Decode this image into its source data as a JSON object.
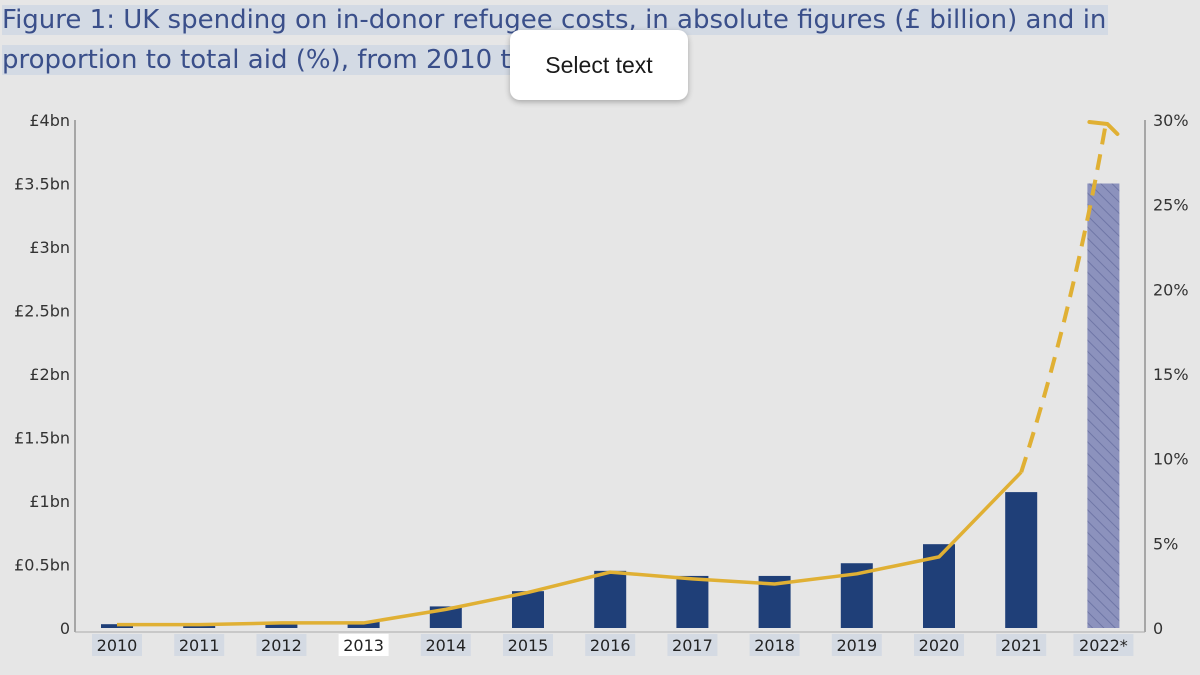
{
  "title": {
    "line1": "Figure 1: UK spending on in-donor refugee costs, in absolute figures (£ billion) and in",
    "line2": "proportion to total aid (%), from 2010 to"
  },
  "popup": {
    "label": "Select text"
  },
  "colors": {
    "bar": "#1f3f78",
    "bar_estimate": "#8c92bd",
    "line": "#e0b034",
    "axis": "#666666"
  },
  "chart_data": {
    "type": "bar",
    "categories": [
      "2010",
      "2011",
      "2012",
      "2013",
      "2014",
      "2015",
      "2016",
      "2017",
      "2018",
      "2019",
      "2020",
      "2021",
      "2022*"
    ],
    "series": [
      {
        "axis": "left",
        "type": "bar",
        "values": [
          0.03,
          0.02,
          0.03,
          0.05,
          0.17,
          0.29,
          0.45,
          0.41,
          0.41,
          0.51,
          0.66,
          1.07,
          3.5
        ]
      },
      {
        "axis": "right",
        "type": "line",
        "values": [
          0.2,
          0.2,
          0.3,
          0.3,
          1.1,
          2.1,
          3.3,
          2.9,
          2.6,
          3.2,
          4.2,
          9.2,
          30.0
        ],
        "dashed_from_index": 11
      }
    ],
    "y_left": {
      "ylim": [
        0,
        4
      ],
      "ticks": [
        "0",
        "£0.5bn",
        "£1bn",
        "£1.5bn",
        "£2bn",
        "£2.5bn",
        "£3bn",
        "£3.5bn",
        "£4bn"
      ]
    },
    "y_right": {
      "ylim": [
        0,
        30
      ],
      "ticks": [
        "0",
        "5%",
        "10%",
        "15%",
        "20%",
        "25%",
        "30%"
      ]
    }
  }
}
